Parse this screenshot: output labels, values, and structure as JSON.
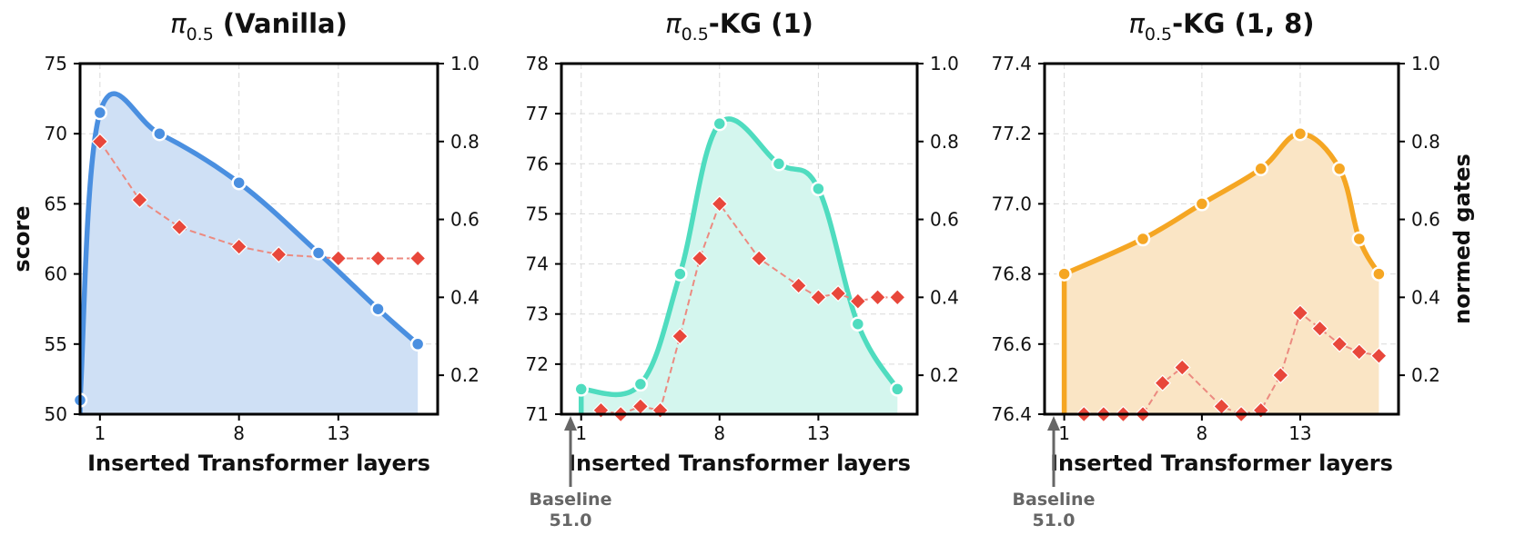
{
  "chart_data": [
    {
      "type": "area",
      "title_base": "π",
      "title_sub": "0.5",
      "title_rest": " (Vanilla)",
      "xlabel": "Inserted Transformer layers",
      "ylabel": "score",
      "y2label": "",
      "xlim": [
        0,
        18
      ],
      "ylim": [
        50,
        75
      ],
      "y2lim": [
        0.1,
        1.0
      ],
      "xticks": [
        1,
        8,
        13
      ],
      "yticks": [
        "50",
        "55",
        "60",
        "65",
        "70",
        "75"
      ],
      "y2ticks": [
        "0.2",
        "0.4",
        "0.6",
        "0.8",
        "1.0"
      ],
      "color": "#4a8fe0",
      "fill": "#cfe0f5",
      "score": {
        "x": [
          0,
          1,
          4,
          8,
          12,
          15,
          17
        ],
        "y": [
          51.0,
          71.5,
          70.0,
          66.5,
          61.5,
          57.5,
          55.0
        ]
      },
      "gates": {
        "x": [
          1,
          3,
          5,
          8,
          10,
          13,
          15,
          17
        ],
        "y": [
          0.8,
          0.65,
          0.58,
          0.53,
          0.51,
          0.5,
          0.5,
          0.5
        ]
      },
      "gates_color": "#e8473b",
      "baseline": null
    },
    {
      "type": "area",
      "title_base": "π",
      "title_sub": "0.5",
      "title_rest": "-KG (1)",
      "xlabel": "Inserted Transformer layers",
      "ylabel": "",
      "y2label": "",
      "xlim": [
        0,
        18
      ],
      "ylim": [
        71,
        78
      ],
      "y2lim": [
        0.1,
        1.0
      ],
      "xticks": [
        1,
        8,
        13
      ],
      "yticks": [
        "71",
        "72",
        "73",
        "74",
        "75",
        "76",
        "77",
        "78"
      ],
      "y2ticks": [
        "0.2",
        "0.4",
        "0.6",
        "0.8",
        "1.0"
      ],
      "color": "#4fdcbf",
      "fill": "#d4f6ee",
      "score": {
        "x": [
          1,
          4,
          6,
          8,
          11,
          13,
          15,
          17
        ],
        "y": [
          71.5,
          71.6,
          73.8,
          76.8,
          76.0,
          75.5,
          72.8,
          71.5
        ]
      },
      "gates": {
        "x": [
          2,
          3,
          4,
          5,
          6,
          7,
          8,
          10,
          12,
          13,
          14,
          15,
          16,
          17
        ],
        "y": [
          0.11,
          0.1,
          0.12,
          0.11,
          0.3,
          0.5,
          0.64,
          0.5,
          0.43,
          0.4,
          0.41,
          0.39,
          0.4,
          0.4
        ]
      },
      "gates_color": "#e8473b",
      "baseline": {
        "label_line1": "Baseline",
        "label_line2": "51.0",
        "color": "#666666"
      }
    },
    {
      "type": "area",
      "title_base": "π",
      "title_sub": "0.5",
      "title_rest": "-KG (1, 8)",
      "xlabel": "Inserted Transformer layers",
      "ylabel": "",
      "y2label": "normed gates",
      "xlim": [
        0,
        18
      ],
      "ylim": [
        76.4,
        77.4
      ],
      "y2lim": [
        0.1,
        1.0
      ],
      "xticks": [
        1,
        8,
        13
      ],
      "yticks": [
        "76.4",
        "76.6",
        "76.8",
        "77.0",
        "77.2",
        "77.4"
      ],
      "y2ticks": [
        "0.2",
        "0.4",
        "0.6",
        "0.8",
        "1.0"
      ],
      "color": "#f5a623",
      "fill": "#fae5c5",
      "score": {
        "x": [
          1,
          5,
          8,
          11,
          13,
          15,
          16,
          17
        ],
        "y": [
          76.8,
          76.9,
          77.0,
          77.1,
          77.2,
          77.1,
          76.9,
          76.8
        ]
      },
      "gates": {
        "x": [
          2,
          3,
          4,
          5,
          6,
          7,
          9,
          10,
          11,
          12,
          13,
          14,
          15,
          16,
          17
        ],
        "y": [
          0.1,
          0.1,
          0.1,
          0.1,
          0.18,
          0.22,
          0.12,
          0.1,
          0.11,
          0.2,
          0.36,
          0.32,
          0.28,
          0.26,
          0.25
        ]
      },
      "gates_color": "#e8473b",
      "baseline": {
        "label_line1": "Baseline",
        "label_line2": "51.0",
        "color": "#666666"
      }
    }
  ]
}
